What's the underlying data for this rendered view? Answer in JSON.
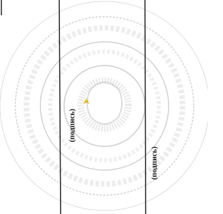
{
  "signature_labels": [
    "(подпись)",
    "(подпись)"
  ]
}
